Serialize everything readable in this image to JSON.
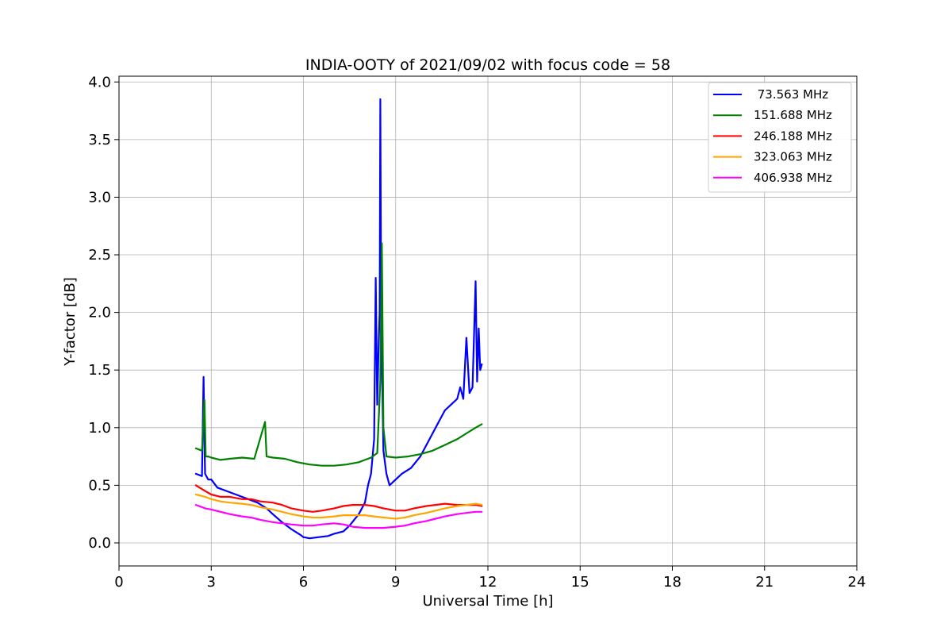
{
  "chart_data": {
    "type": "line",
    "title": "INDIA-OOTY of 2021/09/02 with focus code = 58",
    "xlabel": "Universal Time [h]",
    "ylabel": "Y-factor [dB]",
    "xlim": [
      0,
      24
    ],
    "ylim": [
      -0.2,
      4.05
    ],
    "xticks": [
      0,
      3,
      6,
      9,
      12,
      15,
      18,
      21,
      24
    ],
    "yticks": [
      0.0,
      0.5,
      1.0,
      1.5,
      2.0,
      2.5,
      3.0,
      3.5,
      4.0
    ],
    "xtick_labels": [
      "0",
      "3",
      "6",
      "9",
      "12",
      "15",
      "18",
      "21",
      "24"
    ],
    "ytick_labels": [
      "0.0",
      "0.5",
      "1.0",
      "1.5",
      "2.0",
      "2.5",
      "3.0",
      "3.5",
      "4.0"
    ],
    "grid": true,
    "legend_position": "top-right",
    "series": [
      {
        "name": " 73.563 MHz",
        "color": "#0000ff",
        "x": [
          2.5,
          2.7,
          2.75,
          2.78,
          2.8,
          2.9,
          3.0,
          3.2,
          3.5,
          3.8,
          4.0,
          4.2,
          4.5,
          4.8,
          5.0,
          5.3,
          5.6,
          5.9,
          6.0,
          6.2,
          6.5,
          6.8,
          7.0,
          7.3,
          7.5,
          7.8,
          8.0,
          8.1,
          8.2,
          8.3,
          8.35,
          8.4,
          8.45,
          8.48,
          8.5,
          8.52,
          8.55,
          8.6,
          8.7,
          8.8,
          9.0,
          9.2,
          9.5,
          9.8,
          10.0,
          10.2,
          10.4,
          10.6,
          10.8,
          11.0,
          11.1,
          11.2,
          11.3,
          11.4,
          11.5,
          11.6,
          11.65,
          11.7,
          11.75,
          11.8
        ],
        "y": [
          0.6,
          0.58,
          1.44,
          0.9,
          0.6,
          0.55,
          0.55,
          0.48,
          0.45,
          0.42,
          0.4,
          0.38,
          0.35,
          0.3,
          0.25,
          0.18,
          0.12,
          0.07,
          0.05,
          0.04,
          0.05,
          0.06,
          0.08,
          0.1,
          0.15,
          0.25,
          0.35,
          0.5,
          0.6,
          0.9,
          2.3,
          1.2,
          1.75,
          2.0,
          3.85,
          2.6,
          1.6,
          0.8,
          0.6,
          0.5,
          0.55,
          0.6,
          0.65,
          0.75,
          0.85,
          0.95,
          1.05,
          1.15,
          1.2,
          1.25,
          1.35,
          1.25,
          1.78,
          1.3,
          1.35,
          2.27,
          1.4,
          1.86,
          1.5,
          1.55
        ]
      },
      {
        "name": "151.688 MHz",
        "color": "#008000",
        "x": [
          2.5,
          2.7,
          2.78,
          2.82,
          2.9,
          3.0,
          3.3,
          3.6,
          4.0,
          4.4,
          4.75,
          4.8,
          5.0,
          5.4,
          5.8,
          6.2,
          6.6,
          7.0,
          7.4,
          7.8,
          8.0,
          8.2,
          8.4,
          8.5,
          8.55,
          8.6,
          8.7,
          9.0,
          9.4,
          9.8,
          10.2,
          10.6,
          11.0,
          11.3,
          11.6,
          11.8
        ],
        "y": [
          0.82,
          0.8,
          1.24,
          0.75,
          0.75,
          0.74,
          0.72,
          0.73,
          0.74,
          0.73,
          1.05,
          0.75,
          0.74,
          0.73,
          0.7,
          0.68,
          0.67,
          0.67,
          0.68,
          0.7,
          0.72,
          0.74,
          0.78,
          1.4,
          2.6,
          1.0,
          0.75,
          0.74,
          0.75,
          0.77,
          0.8,
          0.85,
          0.9,
          0.95,
          1.0,
          1.03
        ]
      },
      {
        "name": "246.188 MHz",
        "color": "#ff0000",
        "x": [
          2.5,
          2.8,
          3.0,
          3.3,
          3.6,
          4.0,
          4.3,
          4.6,
          5.0,
          5.3,
          5.6,
          6.0,
          6.3,
          6.6,
          7.0,
          7.3,
          7.6,
          8.0,
          8.3,
          8.6,
          9.0,
          9.3,
          9.6,
          10.0,
          10.3,
          10.6,
          11.0,
          11.3,
          11.6,
          11.8
        ],
        "y": [
          0.5,
          0.45,
          0.42,
          0.4,
          0.4,
          0.38,
          0.38,
          0.36,
          0.35,
          0.33,
          0.3,
          0.28,
          0.27,
          0.28,
          0.3,
          0.32,
          0.33,
          0.33,
          0.32,
          0.3,
          0.28,
          0.28,
          0.3,
          0.32,
          0.33,
          0.34,
          0.33,
          0.33,
          0.33,
          0.32
        ]
      },
      {
        "name": "323.063 MHz",
        "color": "#ffa500",
        "x": [
          2.5,
          2.8,
          3.0,
          3.3,
          3.6,
          4.0,
          4.3,
          4.6,
          5.0,
          5.3,
          5.6,
          6.0,
          6.3,
          6.6,
          7.0,
          7.3,
          7.6,
          8.0,
          8.3,
          8.6,
          9.0,
          9.3,
          9.6,
          10.0,
          10.3,
          10.6,
          11.0,
          11.3,
          11.6,
          11.8
        ],
        "y": [
          0.42,
          0.4,
          0.38,
          0.36,
          0.35,
          0.34,
          0.33,
          0.31,
          0.29,
          0.27,
          0.25,
          0.23,
          0.22,
          0.22,
          0.23,
          0.24,
          0.24,
          0.24,
          0.23,
          0.22,
          0.21,
          0.22,
          0.24,
          0.26,
          0.28,
          0.3,
          0.32,
          0.33,
          0.34,
          0.33
        ]
      },
      {
        "name": "406.938 MHz",
        "color": "#ff00ff",
        "x": [
          2.5,
          2.8,
          3.0,
          3.3,
          3.6,
          4.0,
          4.3,
          4.6,
          5.0,
          5.3,
          5.6,
          6.0,
          6.3,
          6.6,
          7.0,
          7.3,
          7.6,
          8.0,
          8.3,
          8.6,
          9.0,
          9.3,
          9.6,
          10.0,
          10.3,
          10.6,
          11.0,
          11.3,
          11.6,
          11.8
        ],
        "y": [
          0.33,
          0.3,
          0.29,
          0.27,
          0.25,
          0.23,
          0.22,
          0.2,
          0.18,
          0.17,
          0.16,
          0.15,
          0.15,
          0.16,
          0.17,
          0.16,
          0.14,
          0.13,
          0.13,
          0.13,
          0.14,
          0.15,
          0.17,
          0.19,
          0.21,
          0.23,
          0.25,
          0.26,
          0.27,
          0.27
        ]
      }
    ]
  }
}
